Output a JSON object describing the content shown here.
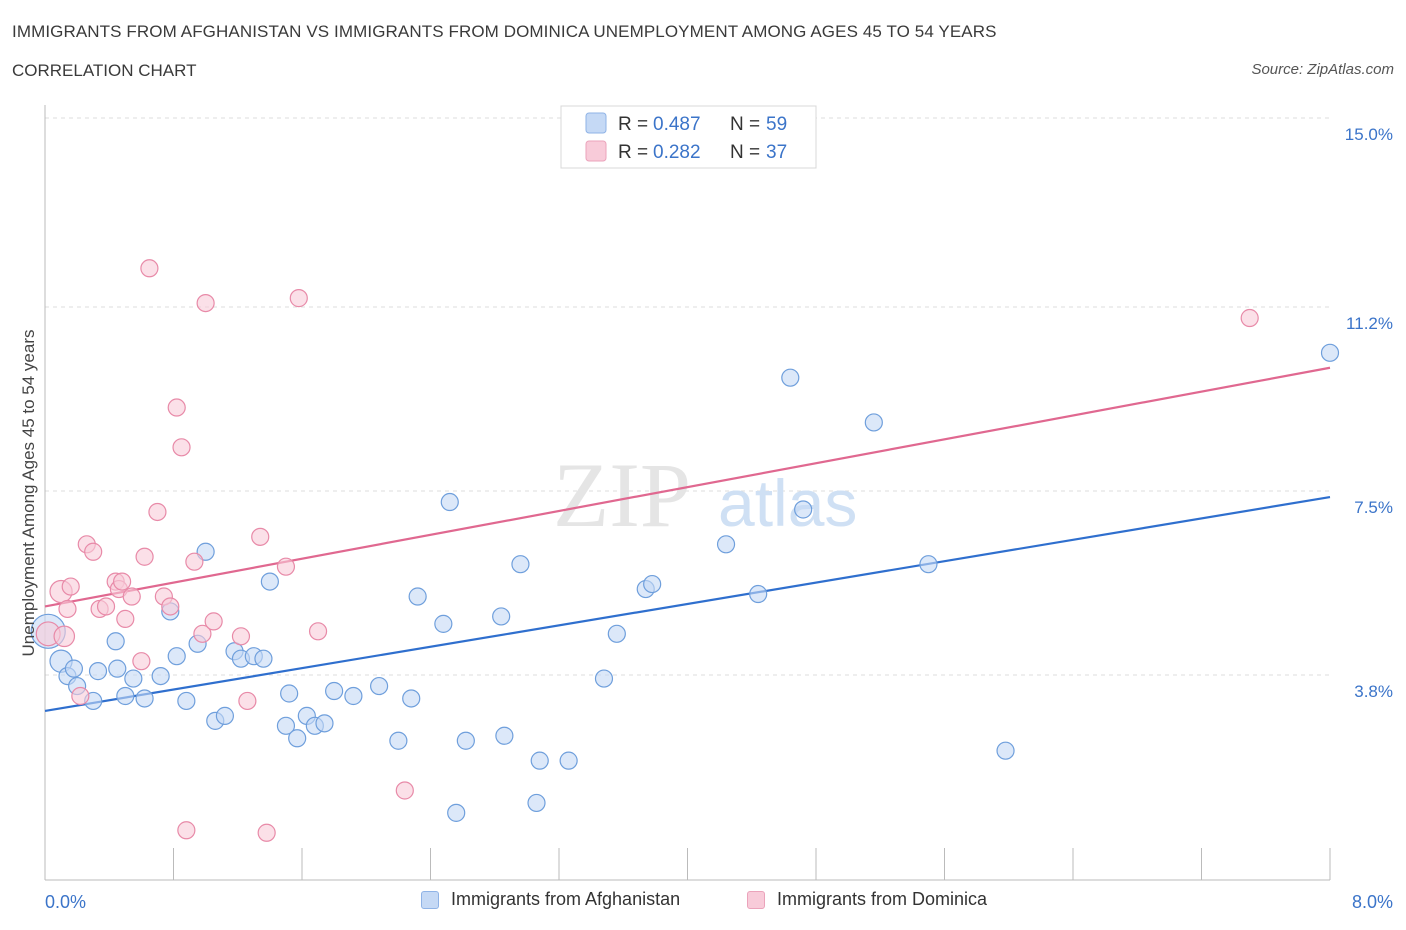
{
  "header": {
    "title": "IMMIGRANTS FROM AFGHANISTAN VS IMMIGRANTS FROM DOMINICA UNEMPLOYMENT AMONG AGES 45 TO 54 YEARS",
    "subtitle": "CORRELATION CHART",
    "source": "Source: ZipAtlas.com"
  },
  "watermark": {
    "zip": "ZIP",
    "atlas": "atlas"
  },
  "colors": {
    "blue": "#6f9fdc",
    "blue_fill": "#c5d9f5",
    "blue_line": "#2f6fce",
    "pink": "#e88aa8",
    "pink_fill": "#f8cbd9",
    "pink_line": "#e06890",
    "value_text": "#3b74c9",
    "grid": "#dddddd",
    "axis": "#bbbbbb"
  },
  "legend_top": {
    "rows": [
      {
        "r_label": "R = ",
        "r_value": "0.487",
        "n_label": "N = ",
        "n_value": "59"
      },
      {
        "r_label": "R = ",
        "r_value": "0.282",
        "n_label": "N = ",
        "n_value": "37"
      }
    ]
  },
  "legend_bottom": [
    "Immigrants from Afghanistan",
    "Immigrants from Dominica"
  ],
  "chart_data": {
    "type": "scatter",
    "ylabel": "Unemployment Among Ages 45 to 54 years",
    "xlabel": "",
    "xlim": [
      0,
      8.0
    ],
    "ylim": [
      0,
      15.0
    ],
    "x_tick_labels": [
      {
        "v": 0,
        "label": "0.0%"
      },
      {
        "v": 8.0,
        "label": "8.0%"
      }
    ],
    "y_tick_labels": [
      {
        "v": 3.8,
        "label": "3.8%"
      },
      {
        "v": 7.5,
        "label": "7.5%"
      },
      {
        "v": 11.2,
        "label": "11.2%"
      },
      {
        "v": 15.0,
        "label": "15.0%"
      }
    ],
    "series": [
      {
        "name": "Immigrants from Afghanistan",
        "color": "blue",
        "trend": [
          [
            0.0,
            3.4
          ],
          [
            8.0,
            7.7
          ]
        ],
        "points": [
          [
            0.02,
            5.0,
            2
          ],
          [
            0.1,
            4.4,
            1.3
          ],
          [
            0.14,
            4.1,
            1
          ],
          [
            0.18,
            4.25,
            1
          ],
          [
            0.2,
            3.9,
            1
          ],
          [
            0.3,
            3.6,
            1
          ],
          [
            0.33,
            4.2,
            1
          ],
          [
            0.44,
            4.8,
            1
          ],
          [
            0.45,
            4.25,
            1
          ],
          [
            0.55,
            4.05,
            1
          ],
          [
            0.62,
            3.65,
            1
          ],
          [
            0.72,
            4.1,
            1
          ],
          [
            0.78,
            5.4,
            1
          ],
          [
            0.82,
            4.5,
            1
          ],
          [
            0.88,
            3.6,
            1
          ],
          [
            0.95,
            4.75,
            1
          ],
          [
            1.0,
            6.6,
            1
          ],
          [
            1.06,
            3.2,
            1
          ],
          [
            1.12,
            3.3,
            1
          ],
          [
            1.18,
            4.6,
            1
          ],
          [
            1.22,
            4.45,
            1
          ],
          [
            1.3,
            4.5,
            1
          ],
          [
            1.36,
            4.45,
            1
          ],
          [
            1.4,
            6.0,
            1
          ],
          [
            1.5,
            3.1,
            1
          ],
          [
            1.52,
            3.75,
            1
          ],
          [
            1.57,
            2.85,
            1
          ],
          [
            1.63,
            3.3,
            1
          ],
          [
            1.68,
            3.1,
            1
          ],
          [
            1.74,
            3.15,
            1
          ],
          [
            1.8,
            3.8,
            1
          ],
          [
            1.92,
            3.7,
            1
          ],
          [
            2.08,
            3.9,
            1
          ],
          [
            2.2,
            2.8,
            1
          ],
          [
            2.28,
            3.65,
            1
          ],
          [
            2.32,
            5.7,
            1
          ],
          [
            2.48,
            5.15,
            1
          ],
          [
            2.52,
            7.6,
            1
          ],
          [
            2.56,
            1.35,
            1
          ],
          [
            2.62,
            2.8,
            1
          ],
          [
            2.84,
            5.3,
            1
          ],
          [
            2.86,
            2.9,
            1
          ],
          [
            2.96,
            6.35,
            1
          ],
          [
            3.06,
            1.55,
            1
          ],
          [
            3.08,
            2.4,
            1
          ],
          [
            3.26,
            2.4,
            1
          ],
          [
            3.48,
            4.05,
            1
          ],
          [
            3.56,
            4.95,
            1
          ],
          [
            3.74,
            5.85,
            1
          ],
          [
            3.78,
            5.95,
            1
          ],
          [
            4.24,
            6.75,
            1
          ],
          [
            4.44,
            5.75,
            1
          ],
          [
            4.64,
            10.1,
            1
          ],
          [
            4.72,
            7.45,
            1
          ],
          [
            5.16,
            9.2,
            1
          ],
          [
            5.5,
            6.35,
            1
          ],
          [
            5.98,
            2.6,
            1
          ],
          [
            8.0,
            10.6,
            1
          ],
          [
            0.5,
            3.7,
            1
          ]
        ]
      },
      {
        "name": "Immigrants from Dominica",
        "color": "pink",
        "trend": [
          [
            0.0,
            5.5
          ],
          [
            8.0,
            10.3
          ]
        ],
        "points": [
          [
            0.02,
            4.95,
            1.4
          ],
          [
            0.1,
            5.8,
            1.3
          ],
          [
            0.12,
            4.9,
            1.2
          ],
          [
            0.14,
            5.45,
            1
          ],
          [
            0.16,
            5.9,
            1
          ],
          [
            0.22,
            3.7,
            1
          ],
          [
            0.26,
            6.75,
            1
          ],
          [
            0.3,
            6.6,
            1
          ],
          [
            0.34,
            5.45,
            1
          ],
          [
            0.38,
            5.5,
            1
          ],
          [
            0.44,
            6.0,
            1
          ],
          [
            0.46,
            5.85,
            1
          ],
          [
            0.48,
            6.0,
            1
          ],
          [
            0.5,
            5.25,
            1
          ],
          [
            0.54,
            5.7,
            1
          ],
          [
            0.6,
            4.4,
            1
          ],
          [
            0.62,
            6.5,
            1
          ],
          [
            0.65,
            12.3,
            1
          ],
          [
            0.7,
            7.4,
            1
          ],
          [
            0.74,
            5.7,
            1
          ],
          [
            0.78,
            5.5,
            1
          ],
          [
            0.82,
            9.5,
            1
          ],
          [
            0.85,
            8.7,
            1
          ],
          [
            0.88,
            1.0,
            1
          ],
          [
            0.93,
            6.4,
            1
          ],
          [
            0.98,
            4.95,
            1
          ],
          [
            1.0,
            11.6,
            1
          ],
          [
            1.05,
            5.2,
            1
          ],
          [
            1.22,
            4.9,
            1
          ],
          [
            1.26,
            3.6,
            1
          ],
          [
            1.34,
            6.9,
            1
          ],
          [
            1.38,
            0.95,
            1
          ],
          [
            1.5,
            6.3,
            1
          ],
          [
            1.58,
            11.7,
            1
          ],
          [
            1.7,
            5.0,
            1
          ],
          [
            2.24,
            1.8,
            1
          ],
          [
            7.5,
            11.3,
            1
          ]
        ]
      }
    ]
  }
}
